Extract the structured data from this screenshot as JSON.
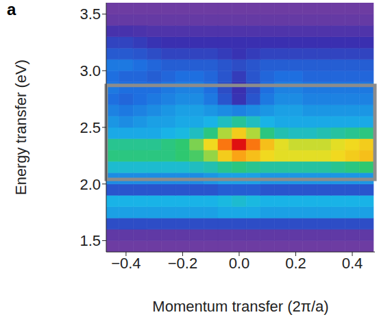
{
  "chart_data": {
    "type": "heatmap",
    "panel": "a",
    "x_label": "Momentum transfer (2π/a)",
    "y_label": "Energy transfer (eV)",
    "xlim": [
      -0.47,
      0.48
    ],
    "ylim": [
      1.4,
      3.6
    ],
    "xticks": [
      {
        "value": -0.4,
        "label": "−0.4"
      },
      {
        "value": -0.2,
        "label": "−0.2"
      },
      {
        "value": 0,
        "label": "0.0"
      },
      0.2,
      0.4
    ],
    "yticks": [
      1.5,
      {
        "value": 2,
        "label": "2.0"
      },
      2.5,
      {
        "value": 3,
        "label": "3.0"
      },
      3.5
    ],
    "zlim": [
      0,
      100
    ],
    "box_ylim": [
      2.04,
      2.87
    ],
    "x": [
      -0.45,
      -0.4,
      -0.35,
      -0.3,
      -0.25,
      -0.2,
      -0.15,
      -0.1,
      -0.05,
      0,
      0.05,
      0.1,
      0.15,
      0.2,
      0.25,
      0.3,
      0.35,
      0.4,
      0.45
    ],
    "y": [
      1.45,
      1.55,
      1.65,
      1.75,
      1.85,
      1.95,
      2.05,
      2.15,
      2.25,
      2.35,
      2.45,
      2.55,
      2.65,
      2.75,
      2.85,
      2.95,
      3.05,
      3.15,
      3.25,
      3.35,
      3.45,
      3.55
    ],
    "z": [
      [
        3,
        3,
        3,
        3,
        3,
        3,
        3,
        3,
        3,
        3,
        3,
        3,
        3,
        3,
        3,
        3,
        3,
        3,
        3
      ],
      [
        6,
        6,
        6,
        6,
        6,
        6,
        6,
        6,
        6,
        6,
        6,
        6,
        6,
        6,
        6,
        6,
        6,
        6,
        6
      ],
      [
        22,
        22,
        22,
        22,
        22,
        22,
        22,
        22,
        22,
        22,
        22,
        22,
        22,
        22,
        22,
        22,
        22,
        22,
        22
      ],
      [
        40,
        40,
        40,
        40,
        40,
        40,
        40,
        40,
        42,
        42,
        42,
        40,
        40,
        40,
        40,
        40,
        40,
        40,
        40
      ],
      [
        44,
        44,
        44,
        44,
        44,
        44,
        44,
        44,
        46,
        48,
        46,
        44,
        44,
        44,
        44,
        44,
        44,
        44,
        44
      ],
      [
        24,
        24,
        24,
        24,
        24,
        24,
        24,
        24,
        26,
        26,
        26,
        24,
        24,
        24,
        24,
        24,
        24,
        24,
        24
      ],
      [
        36,
        36,
        36,
        36,
        36,
        36,
        36,
        38,
        40,
        40,
        40,
        38,
        38,
        38,
        38,
        38,
        38,
        38,
        38
      ],
      [
        48,
        48,
        48,
        48,
        48,
        48,
        50,
        52,
        56,
        58,
        56,
        54,
        54,
        54,
        54,
        54,
        56,
        58,
        60
      ],
      [
        58,
        58,
        58,
        58,
        58,
        60,
        62,
        68,
        78,
        84,
        80,
        76,
        74,
        74,
        74,
        74,
        76,
        78,
        80
      ],
      [
        56,
        56,
        56,
        56,
        58,
        60,
        66,
        76,
        90,
        100,
        90,
        80,
        74,
        72,
        72,
        72,
        74,
        76,
        78
      ],
      [
        42,
        42,
        42,
        42,
        44,
        46,
        50,
        58,
        70,
        78,
        70,
        58,
        52,
        50,
        50,
        52,
        54,
        56,
        58
      ],
      [
        38,
        36,
        38,
        40,
        40,
        42,
        42,
        44,
        50,
        55,
        50,
        44,
        42,
        42,
        42,
        42,
        42,
        42,
        42
      ],
      [
        34,
        32,
        34,
        36,
        38,
        40,
        40,
        38,
        36,
        34,
        36,
        38,
        40,
        40,
        38,
        38,
        38,
        38,
        38
      ],
      [
        30,
        28,
        30,
        32,
        34,
        36,
        36,
        32,
        24,
        16,
        24,
        32,
        36,
        36,
        34,
        34,
        34,
        34,
        34
      ],
      [
        32,
        30,
        30,
        30,
        32,
        34,
        34,
        30,
        22,
        15,
        22,
        30,
        34,
        34,
        32,
        32,
        32,
        32,
        32
      ],
      [
        30,
        28,
        28,
        26,
        28,
        30,
        30,
        28,
        24,
        18,
        24,
        28,
        30,
        30,
        28,
        28,
        28,
        28,
        28
      ],
      [
        32,
        32,
        30,
        28,
        26,
        26,
        26,
        26,
        24,
        22,
        24,
        26,
        26,
        26,
        26,
        26,
        26,
        26,
        26
      ],
      [
        25,
        25,
        24,
        22,
        20,
        20,
        20,
        20,
        18,
        16,
        18,
        20,
        20,
        20,
        20,
        20,
        20,
        20,
        20
      ],
      [
        20,
        20,
        18,
        16,
        15,
        15,
        15,
        15,
        15,
        15,
        15,
        15,
        15,
        15,
        15,
        15,
        15,
        15,
        15
      ],
      [
        12,
        12,
        11,
        10,
        10,
        10,
        10,
        10,
        10,
        10,
        10,
        10,
        10,
        10,
        10,
        10,
        10,
        10,
        10
      ],
      [
        5,
        5,
        5,
        5,
        5,
        5,
        5,
        5,
        5,
        5,
        5,
        5,
        5,
        5,
        5,
        5,
        5,
        5,
        5
      ],
      [
        3,
        3,
        3,
        3,
        3,
        3,
        3,
        3,
        3,
        3,
        3,
        3,
        3,
        3,
        3,
        3,
        3,
        3,
        3
      ]
    ]
  }
}
